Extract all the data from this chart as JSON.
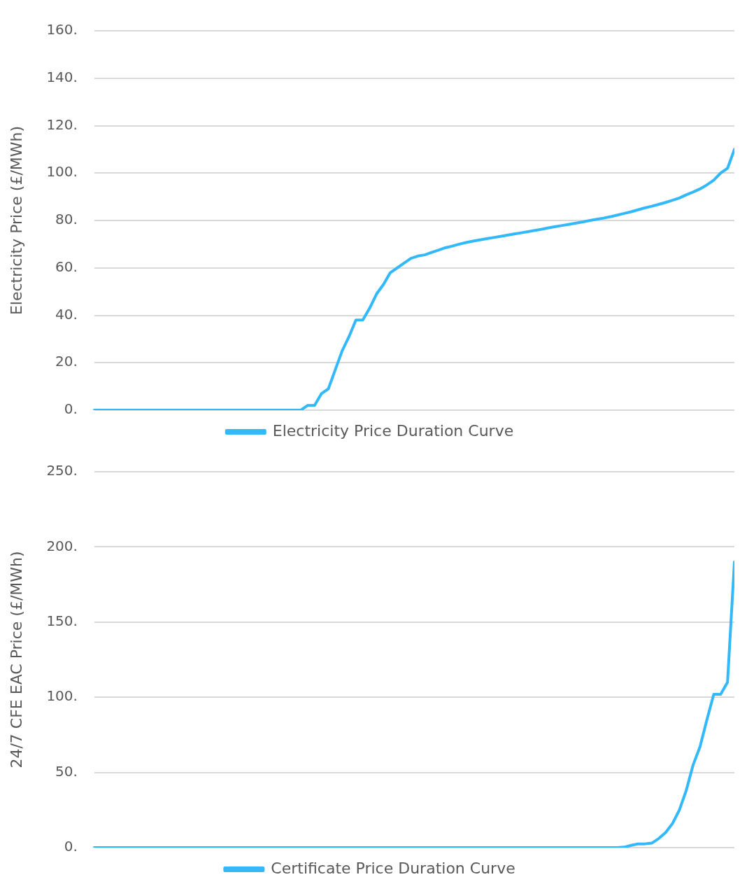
{
  "chart_data": [
    {
      "type": "line",
      "ylabel": "Electricity Price (£/MWh)",
      "categories": [
        null,
        null,
        null,
        null,
        null,
        null,
        null,
        null,
        null,
        null,
        null,
        null,
        null,
        null,
        null,
        null,
        null,
        null,
        null,
        null,
        null,
        null,
        null,
        null,
        null,
        null,
        null,
        null,
        null,
        null,
        null,
        null,
        null,
        null,
        null,
        null,
        null,
        null,
        null,
        null,
        null,
        null,
        null,
        null,
        null,
        null,
        null,
        null,
        null,
        null,
        null,
        null,
        null,
        null,
        null,
        null,
        null,
        null,
        null,
        null,
        null,
        null,
        null,
        null,
        null,
        null,
        null,
        null,
        null,
        null,
        null,
        null,
        null,
        null,
        null,
        null,
        null,
        null,
        null,
        null,
        null,
        null,
        null,
        null,
        null,
        null,
        null,
        null,
        null,
        null,
        null,
        null,
        null,
        null
      ],
      "series": [
        {
          "name": "Electricity Price Duration Curve",
          "color": "#33b9f9",
          "values": [
            0,
            0,
            0,
            0,
            0,
            0,
            0,
            0,
            0,
            0,
            0,
            0,
            0,
            0,
            0,
            0,
            0,
            0,
            0,
            0,
            0,
            0,
            0,
            0,
            0,
            0,
            0,
            0,
            0,
            0,
            0,
            2,
            2,
            7,
            9,
            17,
            25,
            31,
            38,
            38,
            43,
            49,
            53,
            58,
            60,
            62,
            64,
            65,
            65.5,
            66.5,
            67.5,
            68.5,
            69.2,
            70,
            70.7,
            71.3,
            71.8,
            72.3,
            72.8,
            73.3,
            73.8,
            74.3,
            74.8,
            75.3,
            75.8,
            76.3,
            76.9,
            77.4,
            77.9,
            78.4,
            78.9,
            79.4,
            80,
            80.5,
            81,
            81.6,
            82.3,
            83,
            83.7,
            84.5,
            85.3,
            86,
            86.8,
            87.6,
            88.5,
            89.5,
            90.8,
            92,
            93.3,
            95,
            97,
            100,
            102,
            110
          ]
        }
      ],
      "ylim": [
        0,
        160
      ],
      "yticks": [
        {
          "value": 0,
          "label": "0."
        },
        {
          "value": 20,
          "label": "20."
        },
        {
          "value": 40,
          "label": "40."
        },
        {
          "value": 60,
          "label": "60."
        },
        {
          "value": 80,
          "label": "80."
        },
        {
          "value": 100,
          "label": "100."
        },
        {
          "value": 120,
          "label": "120."
        },
        {
          "value": 140,
          "label": "140."
        },
        {
          "value": 160,
          "label": "160."
        }
      ],
      "grid": "y",
      "legend": "bottom",
      "tick_labels": "y",
      "marker": "none",
      "line_style": "solid"
    },
    {
      "type": "line",
      "ylabel": "24/7 CFE EAC Price (£/MWh)",
      "categories": [
        null,
        null,
        null,
        null,
        null,
        null,
        null,
        null,
        null,
        null,
        null,
        null,
        null,
        null,
        null,
        null,
        null,
        null,
        null,
        null,
        null,
        null,
        null,
        null,
        null,
        null,
        null,
        null,
        null,
        null,
        null,
        null,
        null,
        null,
        null,
        null,
        null,
        null,
        null,
        null,
        null,
        null,
        null,
        null,
        null,
        null,
        null,
        null,
        null,
        null,
        null,
        null,
        null,
        null,
        null,
        null,
        null,
        null,
        null,
        null,
        null,
        null,
        null,
        null,
        null,
        null,
        null,
        null,
        null,
        null,
        null,
        null,
        null,
        null,
        null,
        null,
        null,
        null,
        null,
        null,
        null,
        null,
        null,
        null,
        null,
        null,
        null,
        null,
        null,
        null,
        null,
        null,
        null,
        null
      ],
      "series": [
        {
          "name": "Certificate Price Duration Curve",
          "color": "#33b9f9",
          "values": [
            0,
            0,
            0,
            0,
            0,
            0,
            0,
            0,
            0,
            0,
            0,
            0,
            0,
            0,
            0,
            0,
            0,
            0,
            0,
            0,
            0,
            0,
            0,
            0,
            0,
            0,
            0,
            0,
            0,
            0,
            0,
            0,
            0,
            0,
            0,
            0,
            0,
            0,
            0,
            0,
            0,
            0,
            0,
            0,
            0,
            0,
            0,
            0,
            0,
            0,
            0,
            0,
            0,
            0,
            0,
            0,
            0,
            0,
            0,
            0,
            0,
            0,
            0,
            0,
            0,
            0,
            0,
            0,
            0,
            0,
            0,
            0,
            0,
            0,
            0,
            0,
            0,
            0.3,
            1.5,
            2.5,
            2.5,
            3,
            6,
            10,
            16,
            25,
            38,
            55,
            67,
            85,
            102,
            102,
            110,
            190
          ]
        }
      ],
      "ylim": [
        0,
        250
      ],
      "yticks": [
        {
          "value": 0,
          "label": "0."
        },
        {
          "value": 50,
          "label": "50."
        },
        {
          "value": 100,
          "label": "100."
        },
        {
          "value": 150,
          "label": "150."
        },
        {
          "value": 200,
          "label": "200."
        },
        {
          "value": 250,
          "label": "250."
        }
      ],
      "grid": "y",
      "legend": "bottom",
      "tick_labels": "y",
      "marker": "none",
      "line_style": "solid"
    }
  ]
}
